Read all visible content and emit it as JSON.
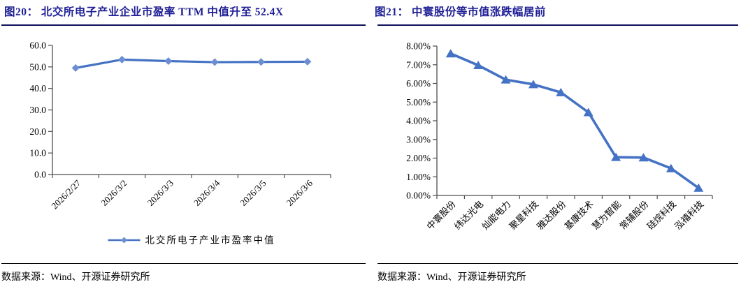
{
  "colors": {
    "title_text": "#1f1f96",
    "title_underline": "#10105e",
    "series_line": "#4472c4",
    "diamond_marker_fill": "#6d8fd2",
    "axis": "#4d4d4d",
    "tick_text": "#000000"
  },
  "left_panel": {
    "title": "图20： 北交所电子产业企业市盈率 TTM 中值升至 52.4X",
    "source": "数据来源：Wind、开源证券研究所"
  },
  "right_panel": {
    "title": "图21： 中寰股份等市值涨跌幅居前",
    "source": "数据来源：Wind、开源证券研究所"
  },
  "chart_data": [
    {
      "type": "line",
      "title": "北交所电子产业企业市盈率TTM中值升至52.4X",
      "categories": [
        "2026/2/27",
        "2026/3/2",
        "2026/3/3",
        "2026/3/4",
        "2026/3/5",
        "2026/3/6"
      ],
      "series": [
        {
          "name": "北交所电子产业市盈率中值",
          "values": [
            49.5,
            53.4,
            52.7,
            52.2,
            52.3,
            52.4
          ]
        }
      ],
      "ylabel": "",
      "xlabel": "",
      "ylim": [
        0,
        60
      ],
      "ytick_step": 10,
      "ytick_labels": [
        "0.0",
        "10.0",
        "20.0",
        "30.0",
        "40.0",
        "50.0",
        "60.0"
      ],
      "grid": false,
      "marker": "diamond",
      "legend_position": "bottom",
      "x_label_rotation": -45
    },
    {
      "type": "line",
      "title": "中寰股份等市值涨跌幅居前",
      "categories": [
        "中寰股份",
        "纬达光电",
        "灿能电力",
        "聚星科技",
        "雅达股份",
        "基康技术",
        "慧为智能",
        "常辅股份",
        "硅烷科技",
        "泓禧科技"
      ],
      "series": [
        {
          "name": "市值涨跌幅",
          "values": [
            7.6,
            6.97,
            6.2,
            5.95,
            5.52,
            4.45,
            2.05,
            2.03,
            1.45,
            0.4
          ]
        }
      ],
      "ylabel": "",
      "xlabel": "",
      "ylim": [
        0,
        8
      ],
      "ytick_step": 1,
      "ytick_labels": [
        "0.00%",
        "1.00%",
        "2.00%",
        "3.00%",
        "4.00%",
        "5.00%",
        "6.00%",
        "7.00%",
        "8.00%"
      ],
      "grid": false,
      "marker": "triangle",
      "legend_position": "none",
      "x_label_rotation": -45
    }
  ]
}
